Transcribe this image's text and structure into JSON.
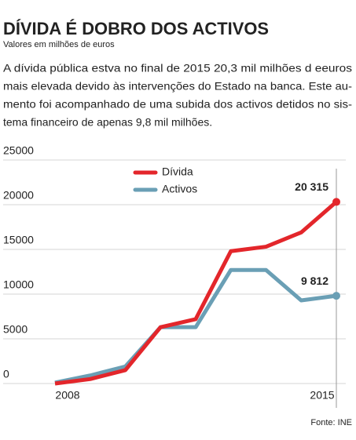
{
  "chart_data": {
    "type": "line",
    "title": "DÍVIDA É DOBRO DOS ACTIVOS",
    "subtitle": "Valores em milhões de euros",
    "text": [
      "A dívida pública estva no final de 2015 20,3 mil milhões d eeuros",
      "mais elevada devido às intervenções do Estado na banca.  Este au-",
      "mento foi acompanhado de uma subida dos activos detidos no sis-",
      "tema financeiro de apenas 9,8 mil milhões."
    ],
    "categories": [
      "2008",
      null,
      null,
      null,
      null,
      null,
      null,
      null,
      "2015"
    ],
    "series": [
      {
        "name": "Dívida",
        "color": "#e3262b",
        "values": [
          0,
          500,
          1500,
          6300,
          7200,
          14800,
          15300,
          16900,
          20315
        ],
        "value_labels": [
          null,
          null,
          null,
          null,
          null,
          null,
          null,
          null,
          "20 315"
        ]
      },
      {
        "name": "Activos",
        "color": "#6a9fb5",
        "values": [
          100,
          900,
          1900,
          6300,
          6300,
          12700,
          12700,
          9300,
          9812
        ],
        "value_labels": [
          null,
          null,
          null,
          null,
          null,
          null,
          null,
          null,
          "9 812"
        ]
      }
    ],
    "ylim": [
      0,
      25000
    ],
    "yticks": [
      0,
      5000,
      10000,
      15000,
      20000,
      25000
    ],
    "grid": true,
    "legend": "top",
    "source": "Fonte: INE"
  }
}
